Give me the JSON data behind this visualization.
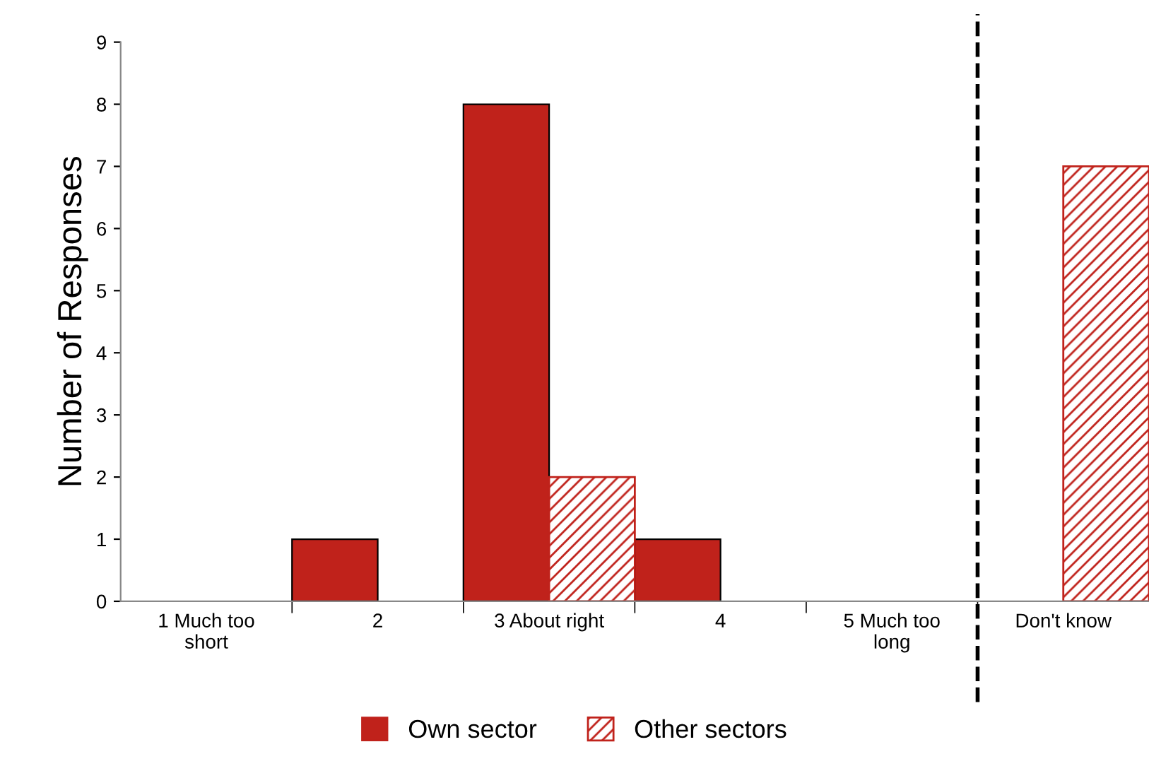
{
  "chart_data": {
    "type": "bar",
    "ylabel": "Number of Responses",
    "categories": [
      "1 Much too\nshort",
      "2",
      "3 About right",
      "4",
      "5 Much too\nlong",
      "Don't know"
    ],
    "series": [
      {
        "name": "Own sector",
        "color": "#c0221b",
        "values": [
          0,
          1,
          8,
          1,
          0,
          0
        ]
      },
      {
        "name": "Other sectors",
        "color": "#c0221b",
        "values": [
          0,
          0,
          2,
          0,
          0,
          7
        ]
      }
    ],
    "ylim": [
      0,
      9
    ],
    "yticks": [
      0,
      1,
      2,
      3,
      4,
      5,
      6,
      7,
      8,
      9
    ],
    "grid": false,
    "legend": "bottom"
  }
}
